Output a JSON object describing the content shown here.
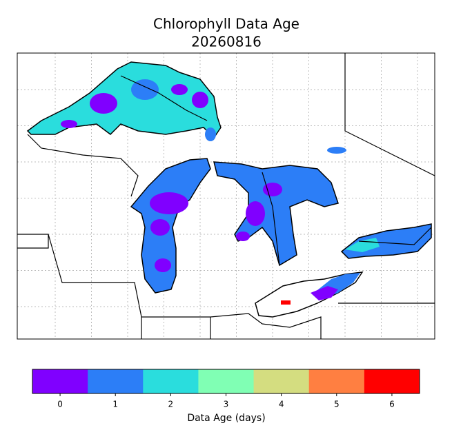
{
  "title": "Chlorophyll Data Age",
  "date": "20260816",
  "colorbar": {
    "label": "Data Age (days)",
    "ticks": [
      0,
      1,
      2,
      3,
      4,
      5,
      6
    ],
    "colors": [
      "#8000ff",
      "#2c7ef7",
      "#2adddd",
      "#80ffb4",
      "#d4dd80",
      "#ff7f41",
      "#ff0000"
    ]
  }
}
